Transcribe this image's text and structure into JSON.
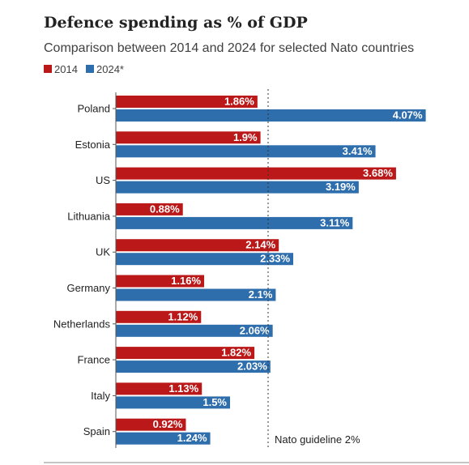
{
  "chart_data": {
    "type": "bar",
    "orientation": "horizontal",
    "title": "Defence spending as % of GDP",
    "subtitle": "Comparison between 2014 and 2024 for selected Nato countries",
    "categories": [
      "Poland",
      "Estonia",
      "US",
      "Lithuania",
      "UK",
      "Germany",
      "Netherlands",
      "France",
      "Italy",
      "Spain"
    ],
    "series": [
      {
        "name": "2014",
        "color": "#bb1919",
        "values": [
          1.86,
          1.9,
          3.68,
          0.88,
          2.14,
          1.16,
          1.12,
          1.82,
          1.13,
          0.92
        ],
        "labels": [
          "1.86%",
          "1.9%",
          "3.68%",
          "0.88%",
          "2.14%",
          "1.16%",
          "1.12%",
          "1.82%",
          "1.13%",
          "0.92%"
        ]
      },
      {
        "name": "2024*",
        "color": "#2e6ead",
        "values": [
          4.07,
          3.41,
          3.19,
          3.11,
          2.33,
          2.1,
          2.06,
          2.03,
          1.5,
          1.24
        ],
        "labels": [
          "4.07%",
          "3.41%",
          "3.19%",
          "3.11%",
          "2.33%",
          "2.1%",
          "2.06%",
          "2.03%",
          "1.5%",
          "1.24%"
        ]
      }
    ],
    "xlim": [
      0,
      4.2
    ],
    "grid": false,
    "legend_position": "top-left",
    "reference_line": {
      "value": 2,
      "label": "Nato guideline 2%"
    }
  }
}
